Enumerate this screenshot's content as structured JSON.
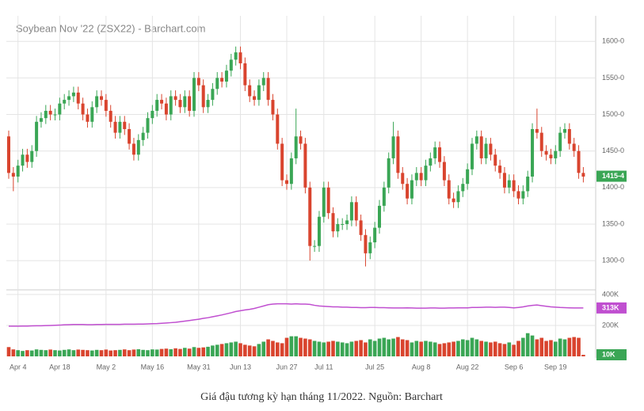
{
  "chart_data": {
    "type": "candlestick",
    "title": "Soybean Nov '22 (ZSX22) - Barchart.com",
    "caption": "Giá đậu tương kỳ hạn tháng 11/2022. Nguồn: Barchart",
    "categories": [
      null,
      null,
      "Apr 4",
      null,
      null,
      null,
      null,
      null,
      null,
      null,
      null,
      "Apr 18",
      null,
      null,
      null,
      null,
      null,
      null,
      null,
      null,
      null,
      "May 2",
      null,
      null,
      null,
      null,
      null,
      null,
      null,
      null,
      null,
      "May 16",
      null,
      null,
      null,
      null,
      null,
      null,
      null,
      null,
      null,
      "May 31",
      null,
      null,
      null,
      null,
      null,
      null,
      null,
      null,
      "Jun 13",
      null,
      null,
      null,
      null,
      null,
      null,
      null,
      null,
      null,
      "Jun 27",
      null,
      null,
      null,
      null,
      null,
      null,
      null,
      "Jul 11",
      null,
      null,
      null,
      null,
      null,
      null,
      null,
      null,
      null,
      null,
      "Jul 25",
      null,
      null,
      null,
      null,
      null,
      null,
      null,
      null,
      null,
      "Aug 8",
      null,
      null,
      null,
      null,
      null,
      null,
      null,
      null,
      null,
      "Aug 22",
      null,
      null,
      null,
      null,
      null,
      null,
      null,
      null,
      null,
      "Sep 6",
      null,
      null,
      null,
      null,
      null,
      null,
      null,
      null,
      "Sep 19",
      null,
      null,
      null,
      null,
      null,
      null
    ],
    "open": [
      1470,
      1420,
      1415,
      1430,
      1445,
      1435,
      1450,
      1490,
      1495,
      1505,
      1500,
      1500,
      1515,
      1520,
      1525,
      1530,
      1515,
      1500,
      1490,
      1510,
      1525,
      1520,
      1505,
      1490,
      1475,
      1490,
      1480,
      1460,
      1445,
      1465,
      1475,
      1495,
      1505,
      1520,
      1515,
      1500,
      1525,
      1520,
      1510,
      1525,
      1505,
      1550,
      1540,
      1510,
      1520,
      1535,
      1550,
      1545,
      1560,
      1575,
      1585,
      1570,
      1540,
      1525,
      1520,
      1540,
      1550,
      1520,
      1500,
      1460,
      1410,
      1405,
      1440,
      1470,
      1460,
      1400,
      1320,
      1320,
      1360,
      1400,
      1365,
      1340,
      1350,
      1350,
      1355,
      1380,
      1355,
      1335,
      1310,
      1325,
      1345,
      1375,
      1400,
      1440,
      1470,
      1420,
      1405,
      1385,
      1410,
      1420,
      1410,
      1430,
      1440,
      1455,
      1435,
      1410,
      1385,
      1380,
      1395,
      1405,
      1425,
      1460,
      1470,
      1440,
      1460,
      1445,
      1430,
      1420,
      1400,
      1410,
      1395,
      1385,
      1395,
      1415,
      1480,
      1475,
      1450,
      1445,
      1440,
      1450,
      1475,
      1480,
      1460,
      1450,
      1420
    ],
    "high": [
      1478,
      1428,
      1438,
      1453,
      1453,
      1458,
      1498,
      1503,
      1513,
      1513,
      1508,
      1523,
      1528,
      1533,
      1538,
      1538,
      1523,
      1508,
      1518,
      1533,
      1533,
      1528,
      1513,
      1498,
      1498,
      1498,
      1488,
      1468,
      1473,
      1483,
      1503,
      1513,
      1528,
      1528,
      1523,
      1533,
      1533,
      1528,
      1533,
      1533,
      1558,
      1558,
      1548,
      1528,
      1543,
      1558,
      1558,
      1568,
      1583,
      1593,
      1593,
      1578,
      1548,
      1533,
      1548,
      1558,
      1558,
      1528,
      1508,
      1468,
      1418,
      1448,
      1508,
      1478,
      1468,
      1408,
      1328,
      1368,
      1408,
      1408,
      1373,
      1358,
      1358,
      1363,
      1388,
      1388,
      1363,
      1343,
      1333,
      1353,
      1383,
      1408,
      1448,
      1490,
      1478,
      1428,
      1413,
      1418,
      1428,
      1428,
      1438,
      1448,
      1463,
      1463,
      1443,
      1418,
      1393,
      1403,
      1413,
      1433,
      1468,
      1478,
      1478,
      1468,
      1468,
      1453,
      1438,
      1428,
      1418,
      1418,
      1403,
      1403,
      1423,
      1488,
      1508,
      1483,
      1458,
      1453,
      1458,
      1483,
      1488,
      1488,
      1468,
      1458,
      1428
    ],
    "low": [
      1412,
      1395,
      1407,
      1422,
      1427,
      1427,
      1442,
      1482,
      1487,
      1492,
      1492,
      1492,
      1507,
      1512,
      1517,
      1507,
      1492,
      1482,
      1482,
      1502,
      1512,
      1497,
      1482,
      1467,
      1467,
      1472,
      1452,
      1437,
      1437,
      1457,
      1467,
      1487,
      1497,
      1507,
      1492,
      1492,
      1512,
      1502,
      1502,
      1497,
      1497,
      1532,
      1502,
      1502,
      1512,
      1527,
      1537,
      1537,
      1552,
      1567,
      1562,
      1532,
      1517,
      1512,
      1512,
      1532,
      1512,
      1492,
      1452,
      1402,
      1397,
      1397,
      1432,
      1452,
      1392,
      1300,
      1312,
      1312,
      1352,
      1357,
      1332,
      1332,
      1342,
      1342,
      1347,
      1347,
      1327,
      1292,
      1302,
      1317,
      1337,
      1367,
      1392,
      1432,
      1412,
      1397,
      1377,
      1377,
      1402,
      1402,
      1402,
      1422,
      1432,
      1427,
      1402,
      1377,
      1372,
      1372,
      1387,
      1397,
      1417,
      1452,
      1432,
      1432,
      1437,
      1422,
      1412,
      1392,
      1392,
      1387,
      1377,
      1377,
      1387,
      1407,
      1467,
      1442,
      1437,
      1432,
      1432,
      1442,
      1467,
      1452,
      1442,
      1412,
      1407
    ],
    "close": [
      1420,
      1415,
      1430,
      1445,
      1435,
      1450,
      1490,
      1495,
      1505,
      1500,
      1500,
      1515,
      1520,
      1525,
      1530,
      1515,
      1500,
      1490,
      1510,
      1525,
      1520,
      1505,
      1490,
      1475,
      1490,
      1480,
      1460,
      1445,
      1465,
      1475,
      1495,
      1505,
      1520,
      1515,
      1500,
      1525,
      1520,
      1510,
      1525,
      1505,
      1550,
      1540,
      1510,
      1520,
      1535,
      1550,
      1545,
      1560,
      1575,
      1585,
      1570,
      1540,
      1525,
      1520,
      1540,
      1550,
      1520,
      1500,
      1460,
      1410,
      1405,
      1440,
      1470,
      1460,
      1400,
      1320,
      1320,
      1360,
      1400,
      1365,
      1340,
      1350,
      1350,
      1355,
      1380,
      1355,
      1335,
      1310,
      1325,
      1345,
      1375,
      1400,
      1440,
      1470,
      1420,
      1405,
      1385,
      1410,
      1420,
      1410,
      1430,
      1440,
      1455,
      1435,
      1410,
      1385,
      1380,
      1395,
      1405,
      1425,
      1460,
      1470,
      1440,
      1460,
      1445,
      1430,
      1420,
      1400,
      1410,
      1395,
      1385,
      1395,
      1415,
      1480,
      1475,
      1450,
      1445,
      1440,
      1450,
      1475,
      1480,
      1460,
      1450,
      1420,
      1415
    ],
    "volume": [
      60,
      45,
      40,
      35,
      40,
      38,
      45,
      42,
      40,
      44,
      40,
      38,
      42,
      45,
      40,
      44,
      42,
      40,
      38,
      42,
      40,
      44,
      38,
      40,
      42,
      45,
      40,
      44,
      46,
      42,
      40,
      45,
      44,
      48,
      50,
      46,
      52,
      48,
      55,
      50,
      60,
      55,
      58,
      62,
      70,
      75,
      80,
      85,
      90,
      95,
      85,
      75,
      70,
      65,
      80,
      95,
      110,
      100,
      90,
      85,
      120,
      130,
      130,
      120,
      115,
      110,
      100,
      95,
      90,
      95,
      100,
      95,
      90,
      85,
      95,
      100,
      105,
      90,
      110,
      100,
      115,
      120,
      110,
      115,
      125,
      110,
      105,
      90,
      100,
      95,
      100,
      95,
      90,
      80,
      85,
      90,
      95,
      100,
      110,
      105,
      120,
      110,
      100,
      95,
      90,
      95,
      85,
      80,
      90,
      75,
      100,
      120,
      150,
      135,
      110,
      120,
      100,
      105,
      95,
      115,
      110,
      120,
      125,
      120,
      10
    ],
    "open_interest": [
      195,
      195,
      195,
      196,
      196,
      197,
      198,
      198,
      199,
      200,
      201,
      202,
      204,
      205,
      206,
      206,
      206,
      205,
      205,
      206,
      206,
      207,
      207,
      207,
      207,
      208,
      208,
      208,
      209,
      209,
      210,
      211,
      212,
      214,
      216,
      218,
      220,
      224,
      228,
      232,
      236,
      240,
      246,
      250,
      256,
      262,
      268,
      275,
      282,
      290,
      295,
      300,
      304,
      310,
      318,
      326,
      334,
      338,
      340,
      340,
      340,
      338,
      340,
      338,
      338,
      336,
      330,
      326,
      324,
      322,
      320,
      320,
      318,
      318,
      316,
      316,
      315,
      315,
      316,
      316,
      315,
      315,
      314,
      313,
      313,
      313,
      314,
      313,
      312,
      312,
      312,
      313,
      313,
      312,
      312,
      313,
      313,
      314,
      314,
      314,
      316,
      316,
      317,
      318,
      318,
      317,
      318,
      318,
      316,
      314,
      316,
      320,
      326,
      330,
      332,
      328,
      324,
      320,
      318,
      316,
      315,
      314,
      313,
      313,
      313
    ],
    "up_color": "#3aa655",
    "down_color": "#d9442e",
    "oi_color": "#c04fd0",
    "ylim": [
      1260,
      1635
    ],
    "yticks": [
      {
        "value": 1300,
        "label": "1300-0"
      },
      {
        "value": 1350,
        "label": "1350-0"
      },
      {
        "value": 1400,
        "label": "1400-0"
      },
      {
        "value": 1450,
        "label": "1450-0"
      },
      {
        "value": 1500,
        "label": "1500-0"
      },
      {
        "value": 1550,
        "label": "1550-0"
      },
      {
        "value": 1600,
        "label": "1600-0"
      }
    ],
    "y2lim": [
      0,
      420
    ],
    "y2ticks": [
      {
        "value": 200,
        "label": "200K"
      },
      {
        "value": 400,
        "label": "400K"
      }
    ],
    "last_price": {
      "value": 1415.5,
      "label": "1415-4"
    },
    "last_oi": {
      "value": 313,
      "label": "313K"
    },
    "last_volume": {
      "value": 10,
      "label": "10K"
    },
    "grid": true
  }
}
